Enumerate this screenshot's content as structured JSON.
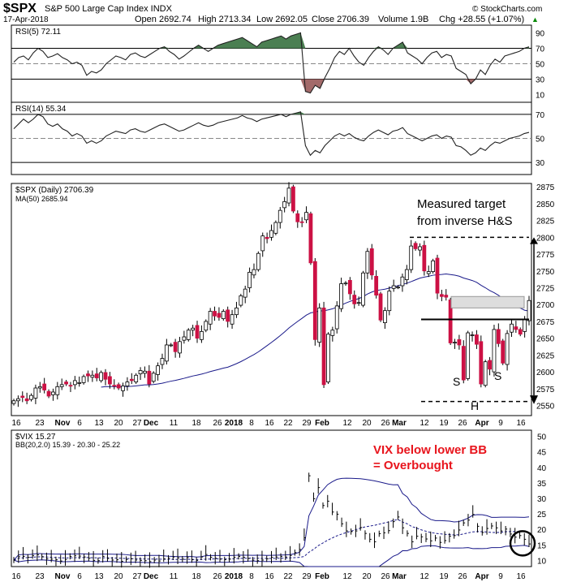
{
  "header": {
    "symbol": "$SPX",
    "name": "S&P 500 Large Cap Index INDX",
    "date": "17-Apr-2018",
    "open": "Open 2692.74",
    "high": "High 2713.34",
    "low": "Low 2692.05",
    "close": "Close 2706.39",
    "volume": "Volume 1.9B",
    "chg": "Chg +28.55 (+1.07%)",
    "chg_arrow": "▲",
    "brand": "© StockCharts.com"
  },
  "colors": {
    "up": "#ffffff",
    "down": "#cc1144",
    "rsi_fill": "#4b7f52",
    "rsi_low_fill": "#a36a6a",
    "ma": "#1a1a8a",
    "bb": "#1a1a8a",
    "annotation_red": "#e8141c"
  },
  "panels": {
    "rsi5": {
      "label": "RSI(5) 72.11",
      "levels": [
        "90",
        "70",
        "50",
        "30",
        "10"
      ]
    },
    "rsi14": {
      "label": "RSI(14) 55.34",
      "levels": [
        "70",
        "50",
        "30"
      ]
    },
    "price": {
      "legend_price": "$SPX (Daily) 2706.39",
      "legend_ma": "MA(50) 2685.94",
      "annotation_target_1": "Measured target",
      "annotation_target_2": "from inverse H&S",
      "label_s1": "S",
      "label_h": "H",
      "label_s2": "S"
    },
    "vix": {
      "legend_price": "$VIX 15.27",
      "legend_bb": "BB(20,2.0) 15.39 - 20.30 - 25.22",
      "annotation_1": "VIX below lower BB",
      "annotation_2": "= Overbought"
    }
  },
  "x_labels": [
    "16",
    "23",
    "Nov",
    "6",
    "13",
    "20",
    "27",
    "Dec",
    "11",
    "18",
    "26",
    "2018",
    "8",
    "16",
    "22",
    "29",
    "Feb",
    "12",
    "20",
    "26",
    "Mar",
    "12",
    "19",
    "26",
    "Apr",
    "9",
    "16"
  ],
  "chart_data": [
    {
      "type": "line",
      "title": "RSI(5) 72.11",
      "ylim": [
        0,
        100
      ],
      "y_ticks": [
        10,
        30,
        50,
        70,
        90
      ],
      "series": [
        {
          "name": "RSI(5)",
          "values": [
            52,
            58,
            60,
            55,
            64,
            70,
            66,
            58,
            60,
            63,
            58,
            55,
            50,
            52,
            48,
            35,
            40,
            38,
            42,
            50,
            55,
            60,
            58,
            55,
            62,
            64,
            60,
            58,
            62,
            66,
            70,
            72,
            66,
            62,
            56,
            60,
            65,
            70,
            74,
            70,
            66,
            70,
            74,
            76,
            78,
            80,
            82,
            84,
            80,
            76,
            72,
            78,
            80,
            82,
            84,
            86,
            82,
            86,
            88,
            90,
            14,
            12,
            22,
            18,
            32,
            44,
            58,
            66,
            62,
            70,
            60,
            52,
            48,
            58,
            66,
            72,
            68,
            62,
            70,
            74,
            78,
            64,
            60,
            56,
            50,
            58,
            64,
            66,
            58,
            62,
            60,
            44,
            40,
            36,
            24,
            30,
            42,
            36,
            48,
            56,
            52,
            60,
            62,
            64,
            66,
            70,
            72
          ]
        }
      ]
    },
    {
      "type": "line",
      "title": "RSI(14) 55.34",
      "ylim": [
        20,
        80
      ],
      "y_ticks": [
        30,
        50,
        70
      ],
      "series": [
        {
          "name": "RSI(14)",
          "values": [
            58,
            62,
            66,
            63,
            66,
            70,
            68,
            62,
            60,
            62,
            58,
            56,
            52,
            54,
            52,
            46,
            48,
            46,
            48,
            52,
            54,
            56,
            55,
            54,
            57,
            58,
            56,
            55,
            57,
            59,
            61,
            62,
            60,
            58,
            56,
            57,
            59,
            61,
            63,
            61,
            60,
            61,
            63,
            64,
            65,
            66,
            67,
            69,
            67,
            66,
            64,
            66,
            67,
            68,
            69,
            70,
            68,
            70,
            71,
            72,
            44,
            36,
            40,
            38,
            44,
            48,
            52,
            54,
            52,
            54,
            51,
            49,
            48,
            52,
            55,
            57,
            55,
            53,
            56,
            57,
            59,
            54,
            52,
            50,
            48,
            50,
            52,
            53,
            50,
            52,
            51,
            44,
            43,
            40,
            36,
            38,
            42,
            40,
            44,
            47,
            46,
            48,
            50,
            51,
            52,
            54,
            55
          ]
        }
      ]
    },
    {
      "type": "candlestick",
      "title": "$SPX (Daily) 2706.39",
      "ylim": [
        2535,
        2880
      ],
      "y_ticks": [
        2550,
        2575,
        2600,
        2625,
        2650,
        2675,
        2700,
        2725,
        2750,
        2775,
        2800,
        2825,
        2850,
        2875
      ],
      "close": [
        2557,
        2560,
        2562,
        2557,
        2565,
        2576,
        2578,
        2573,
        2564,
        2570,
        2578,
        2581,
        2582,
        2579,
        2587,
        2584,
        2593,
        2594,
        2595,
        2591,
        2599,
        2589,
        2582,
        2579,
        2576,
        2579,
        2585,
        2587,
        2595,
        2602,
        2601,
        2582,
        2598,
        2609,
        2620,
        2640,
        2640,
        2630,
        2645,
        2652,
        2662,
        2665,
        2650,
        2660,
        2675,
        2690,
        2683,
        2681,
        2690,
        2675,
        2685,
        2695,
        2713,
        2723,
        2748,
        2752,
        2776,
        2802,
        2798,
        2810,
        2822,
        2840,
        2853,
        2873,
        2839,
        2823,
        2822,
        2837,
        2762,
        2648,
        2695,
        2581,
        2656,
        2662,
        2698,
        2731,
        2732,
        2716,
        2701,
        2703,
        2747,
        2779,
        2744,
        2714,
        2677,
        2691,
        2720,
        2728,
        2726,
        2741,
        2752,
        2787,
        2783,
        2786,
        2750,
        2749,
        2765,
        2717,
        2712,
        2711,
        2643,
        2644,
        2640,
        2588,
        2658,
        2655,
        2641,
        2582,
        2615,
        2604,
        2663,
        2642,
        2613,
        2657,
        2671,
        2663,
        2656,
        2678,
        2706
      ]
    },
    {
      "type": "line",
      "title": "$VIX 15.27",
      "ylim": [
        8,
        52
      ],
      "y_ticks": [
        10,
        15,
        20,
        25,
        30,
        35,
        40,
        45,
        50
      ],
      "series": [
        {
          "name": "$VIX",
          "values": [
            10.1,
            11.2,
            11.3,
            11.0,
            11.5,
            11.8,
            11.2,
            10.5,
            10.4,
            10.2,
            9.8,
            10.3,
            11.3,
            11.5,
            11.4,
            11.1,
            10.7,
            10.0,
            9.9,
            11.3,
            10.6,
            10.1,
            10.2,
            9.7,
            10.3,
            10.5,
            10.1,
            10.0,
            9.9,
            9.6,
            10.1,
            9.8,
            10.5,
            10.7,
            11.1,
            10.8,
            10.4,
            10.9,
            10.2,
            10.0,
            11.1,
            11.9,
            11.0,
            10.7,
            10.4,
            10.2,
            10.4,
            11.0,
            11.3,
            11.0,
            10.6,
            10.1,
            9.9,
            10.1,
            10.5,
            11.0,
            11.1,
            11.3,
            11.1,
            11.6,
            12.5,
            13.5,
            17.3,
            37.3,
            29.9,
            33.5,
            27.7,
            29.1,
            25.6,
            24.9,
            21.8,
            19.5,
            19.3,
            19.5,
            20.6,
            18.7,
            16.8,
            16.0,
            18.6,
            18.9,
            19.6,
            22.5,
            24.0,
            20.5,
            18.7,
            16.0,
            17.8,
            17.6,
            16.9,
            16.3,
            17.2,
            15.8,
            16.4,
            17.8,
            18.0,
            19.8,
            22.1,
            23.0,
            24.8,
            21.0,
            19.0,
            20.3,
            21.1,
            20.5,
            19.5,
            20.1,
            18.5,
            17.5,
            18.0,
            16.8,
            15.3
          ]
        },
        {
          "name": "BB(20,2.0)",
          "values": [
            15.39,
            20.3,
            25.22
          ]
        }
      ]
    }
  ]
}
